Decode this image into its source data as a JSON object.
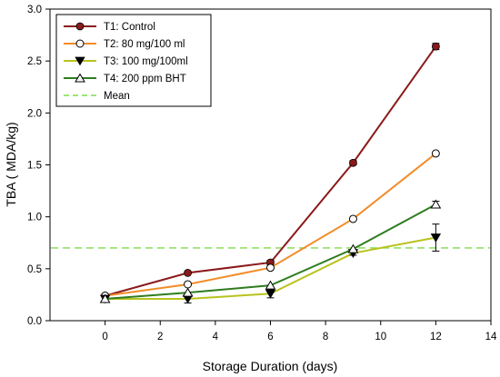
{
  "chart_data": {
    "type": "line",
    "title": "",
    "xlabel": "Storage Duration (days)",
    "ylabel": "TBA ( MDA/kg)",
    "xlim": [
      -2,
      14
    ],
    "ylim": [
      0,
      3
    ],
    "xticks": [
      0,
      2,
      4,
      6,
      8,
      10,
      12,
      14
    ],
    "yticks": [
      0.0,
      0.5,
      1.0,
      1.5,
      2.0,
      2.5,
      3.0
    ],
    "xtick_labels": [
      "0",
      "2",
      "4",
      "6",
      "8",
      "10",
      "12",
      "14"
    ],
    "ytick_labels": [
      "0.0",
      "0.5",
      "1.0",
      "1.5",
      "2.0",
      "2.5",
      "3.0"
    ],
    "grid": false,
    "legend_position": "top-left",
    "x": [
      0,
      3,
      6,
      9,
      12
    ],
    "series": [
      {
        "name": "T1: Control",
        "color": "#8b1a1a",
        "marker": "filled-circle",
        "values": [
          0.24,
          0.46,
          0.56,
          1.52,
          2.64
        ],
        "errors": [
          0.0,
          0.01,
          0.02,
          0.02,
          0.03
        ]
      },
      {
        "name": "T2: 80 mg/100 ml",
        "color": "#f28c28",
        "marker": "open-circle",
        "values": [
          0.24,
          0.35,
          0.51,
          0.98,
          1.61
        ],
        "errors": [
          0.0,
          0.0,
          0.0,
          0.0,
          0.0
        ]
      },
      {
        "name": "T3: 100 mg/100ml",
        "color": "#b8c31e",
        "marker": "filled-triangle-down",
        "values": [
          0.21,
          0.21,
          0.26,
          0.65,
          0.8
        ],
        "errors": [
          0.0,
          0.04,
          0.04,
          0.02,
          0.13
        ]
      },
      {
        "name": "T4: 200 ppm BHT",
        "color": "#2e7d1e",
        "marker": "open-triangle-up",
        "values": [
          0.21,
          0.27,
          0.34,
          0.69,
          1.12
        ],
        "errors": [
          0.0,
          0.0,
          0.0,
          0.0,
          0.03
        ]
      }
    ],
    "reference_lines": [
      {
        "name": "Mean",
        "y": 0.7,
        "color": "#7ddc4a",
        "style": "dashed"
      }
    ]
  }
}
